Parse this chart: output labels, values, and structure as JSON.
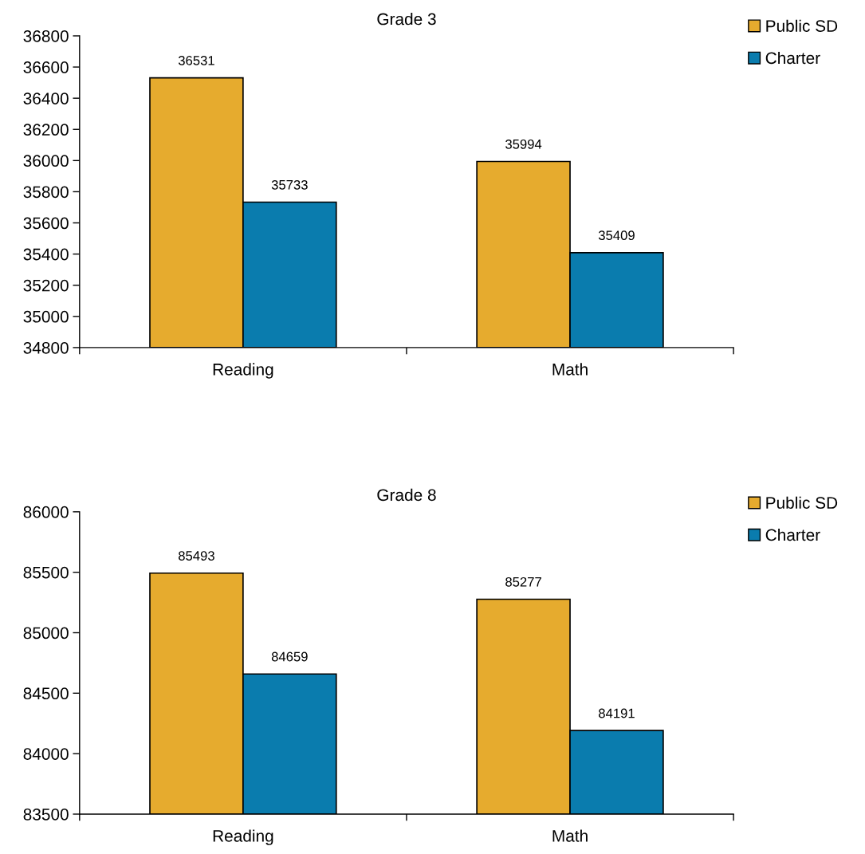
{
  "chart_data": [
    {
      "type": "bar",
      "title": "Grade 3",
      "categories": [
        "Reading",
        "Math"
      ],
      "series": [
        {
          "name": "Public SD",
          "color": "#e6ab2e",
          "values": [
            36531,
            35994
          ]
        },
        {
          "name": "Charter",
          "color": "#0a7cae",
          "values": [
            35733,
            35409
          ]
        }
      ],
      "ylim": [
        34800,
        36800
      ],
      "yticks": [
        34800,
        35000,
        35200,
        35400,
        35600,
        35800,
        36000,
        36200,
        36400,
        36600,
        36800
      ],
      "data_labels": true,
      "grid": false,
      "legend": "top right"
    },
    {
      "type": "bar",
      "title": "Grade 8",
      "categories": [
        "Reading",
        "Math"
      ],
      "series": [
        {
          "name": "Public SD",
          "color": "#e6ab2e",
          "values": [
            85493,
            85277
          ]
        },
        {
          "name": "Charter",
          "color": "#0a7cae",
          "values": [
            84659,
            84191
          ]
        }
      ],
      "ylim": [
        83500,
        86000
      ],
      "yticks": [
        83500,
        84000,
        84500,
        85000,
        85500,
        86000
      ],
      "data_labels": true,
      "grid": false,
      "legend": "top right"
    }
  ]
}
